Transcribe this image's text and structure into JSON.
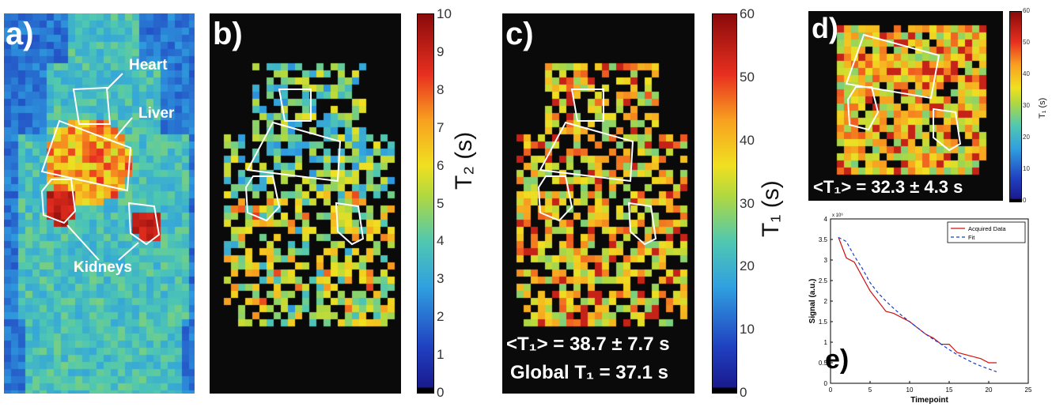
{
  "panels": {
    "a": {
      "label": "a)",
      "organs": {
        "heart": "Heart",
        "liver": "Liver",
        "kidneys": "Kidneys"
      }
    },
    "b": {
      "label": "b)"
    },
    "c": {
      "label": "c)",
      "mean": "<T₁> = 38.7 ± 7.7 s",
      "global": "Global T₁ = 37.1 s"
    },
    "d": {
      "label": "d)",
      "mean": "<T₁> = 32.3 ± 4.3 s"
    },
    "e": {
      "label": "e)"
    }
  },
  "colorbars": {
    "t2": {
      "label": "T₂ (s)",
      "ticks": [
        "10",
        "9",
        "8",
        "7",
        "6",
        "5",
        "4",
        "3",
        "2",
        "1",
        "0"
      ]
    },
    "t1": {
      "label": "T₁ (s)",
      "ticks": [
        "60",
        "50",
        "40",
        "30",
        "20",
        "10",
        "0"
      ]
    },
    "t1_small": {
      "label": "T₁ (s)",
      "ticks": [
        "60",
        "50",
        "40",
        "30",
        "20",
        "10",
        "0"
      ]
    }
  },
  "colors": {
    "map_background": "#0a0a0a",
    "low": "#2a2a9a",
    "high": "#b01010"
  },
  "chart_data": {
    "type": "line",
    "title": "",
    "xlabel": "Timepoint",
    "ylabel": "Signal (a.u.)",
    "yexponent": "x 10⁶",
    "xlim": [
      0,
      25
    ],
    "ylim": [
      0,
      4
    ],
    "xticks": [
      "0",
      "5",
      "10",
      "15",
      "20",
      "25"
    ],
    "yticks": [
      "0",
      "0.5",
      "1",
      "1.5",
      "2",
      "2.5",
      "3",
      "3.5",
      "4"
    ],
    "legend_position": "top-right",
    "series": [
      {
        "name": "Acquired Data",
        "color": "#d01010",
        "dash": "solid",
        "x": [
          1,
          2,
          3,
          4,
          5,
          6,
          7,
          8,
          9,
          10,
          11,
          12,
          13,
          14,
          15,
          16,
          17,
          18,
          19,
          20,
          21
        ],
        "y": [
          3.55,
          3.05,
          2.95,
          2.6,
          2.25,
          2.0,
          1.75,
          1.7,
          1.6,
          1.5,
          1.35,
          1.2,
          1.1,
          0.95,
          0.95,
          0.75,
          0.7,
          0.65,
          0.6,
          0.5,
          0.5
        ]
      },
      {
        "name": "Fit",
        "color": "#1a3cc8",
        "dash": "dashed",
        "x": [
          1,
          2,
          3,
          4,
          5,
          6,
          7,
          8,
          9,
          10,
          11,
          12,
          13,
          14,
          15,
          16,
          17,
          18,
          19,
          20,
          21
        ],
        "y": [
          3.55,
          3.45,
          3.1,
          2.8,
          2.45,
          2.2,
          2.0,
          1.82,
          1.65,
          1.5,
          1.35,
          1.2,
          1.07,
          0.95,
          0.82,
          0.7,
          0.6,
          0.5,
          0.42,
          0.35,
          0.28
        ]
      }
    ]
  }
}
